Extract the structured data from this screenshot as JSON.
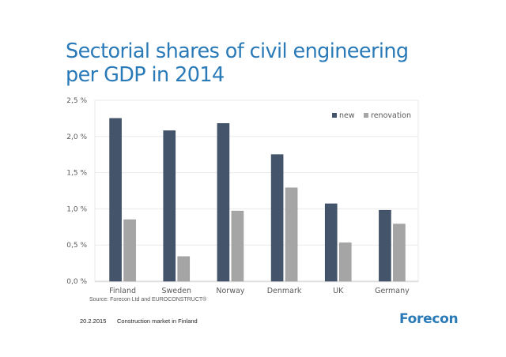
{
  "slide": {
    "title_lines": [
      "Sectorial shares of civil engineering",
      "per GDP in 2014"
    ],
    "source": "Source: Forecon Ltd and EUROCONSTRUCT®",
    "footer_date": "20.2.2015",
    "footer_title": "Construction market in Finland",
    "logo": "Forecon",
    "colors": {
      "title": "#2a7ab8",
      "new": "#44546a",
      "renovation": "#a5a5a5",
      "logo": "#2a7ab8"
    }
  },
  "chart_data": {
    "type": "bar",
    "title": "Sectorial shares of civil engineering per GDP in 2014",
    "xlabel": "",
    "ylabel": "",
    "categories": [
      "Finland",
      "Sweden",
      "Norway",
      "Denmark",
      "UK",
      "Germany"
    ],
    "series": [
      {
        "name": "new",
        "color": "#44546a",
        "values": [
          2.25,
          2.08,
          2.18,
          1.75,
          1.07,
          0.98
        ]
      },
      {
        "name": "renovation",
        "color": "#a5a5a5",
        "values": [
          0.85,
          0.34,
          0.97,
          1.29,
          0.53,
          0.79
        ]
      }
    ],
    "ylim": [
      0,
      2.5
    ],
    "yticks": [
      0,
      0.5,
      1.0,
      1.5,
      2.0,
      2.5
    ],
    "ytick_labels": [
      "0,0 %",
      "0,5 %",
      "1,0 %",
      "1,5 %",
      "2,0 %",
      "2,5 %"
    ],
    "grid": true,
    "legend": {
      "position": "top-right",
      "entries": [
        "new",
        "renovation"
      ]
    },
    "source": "Source: Forecon Ltd and EUROCONSTRUCT®"
  }
}
